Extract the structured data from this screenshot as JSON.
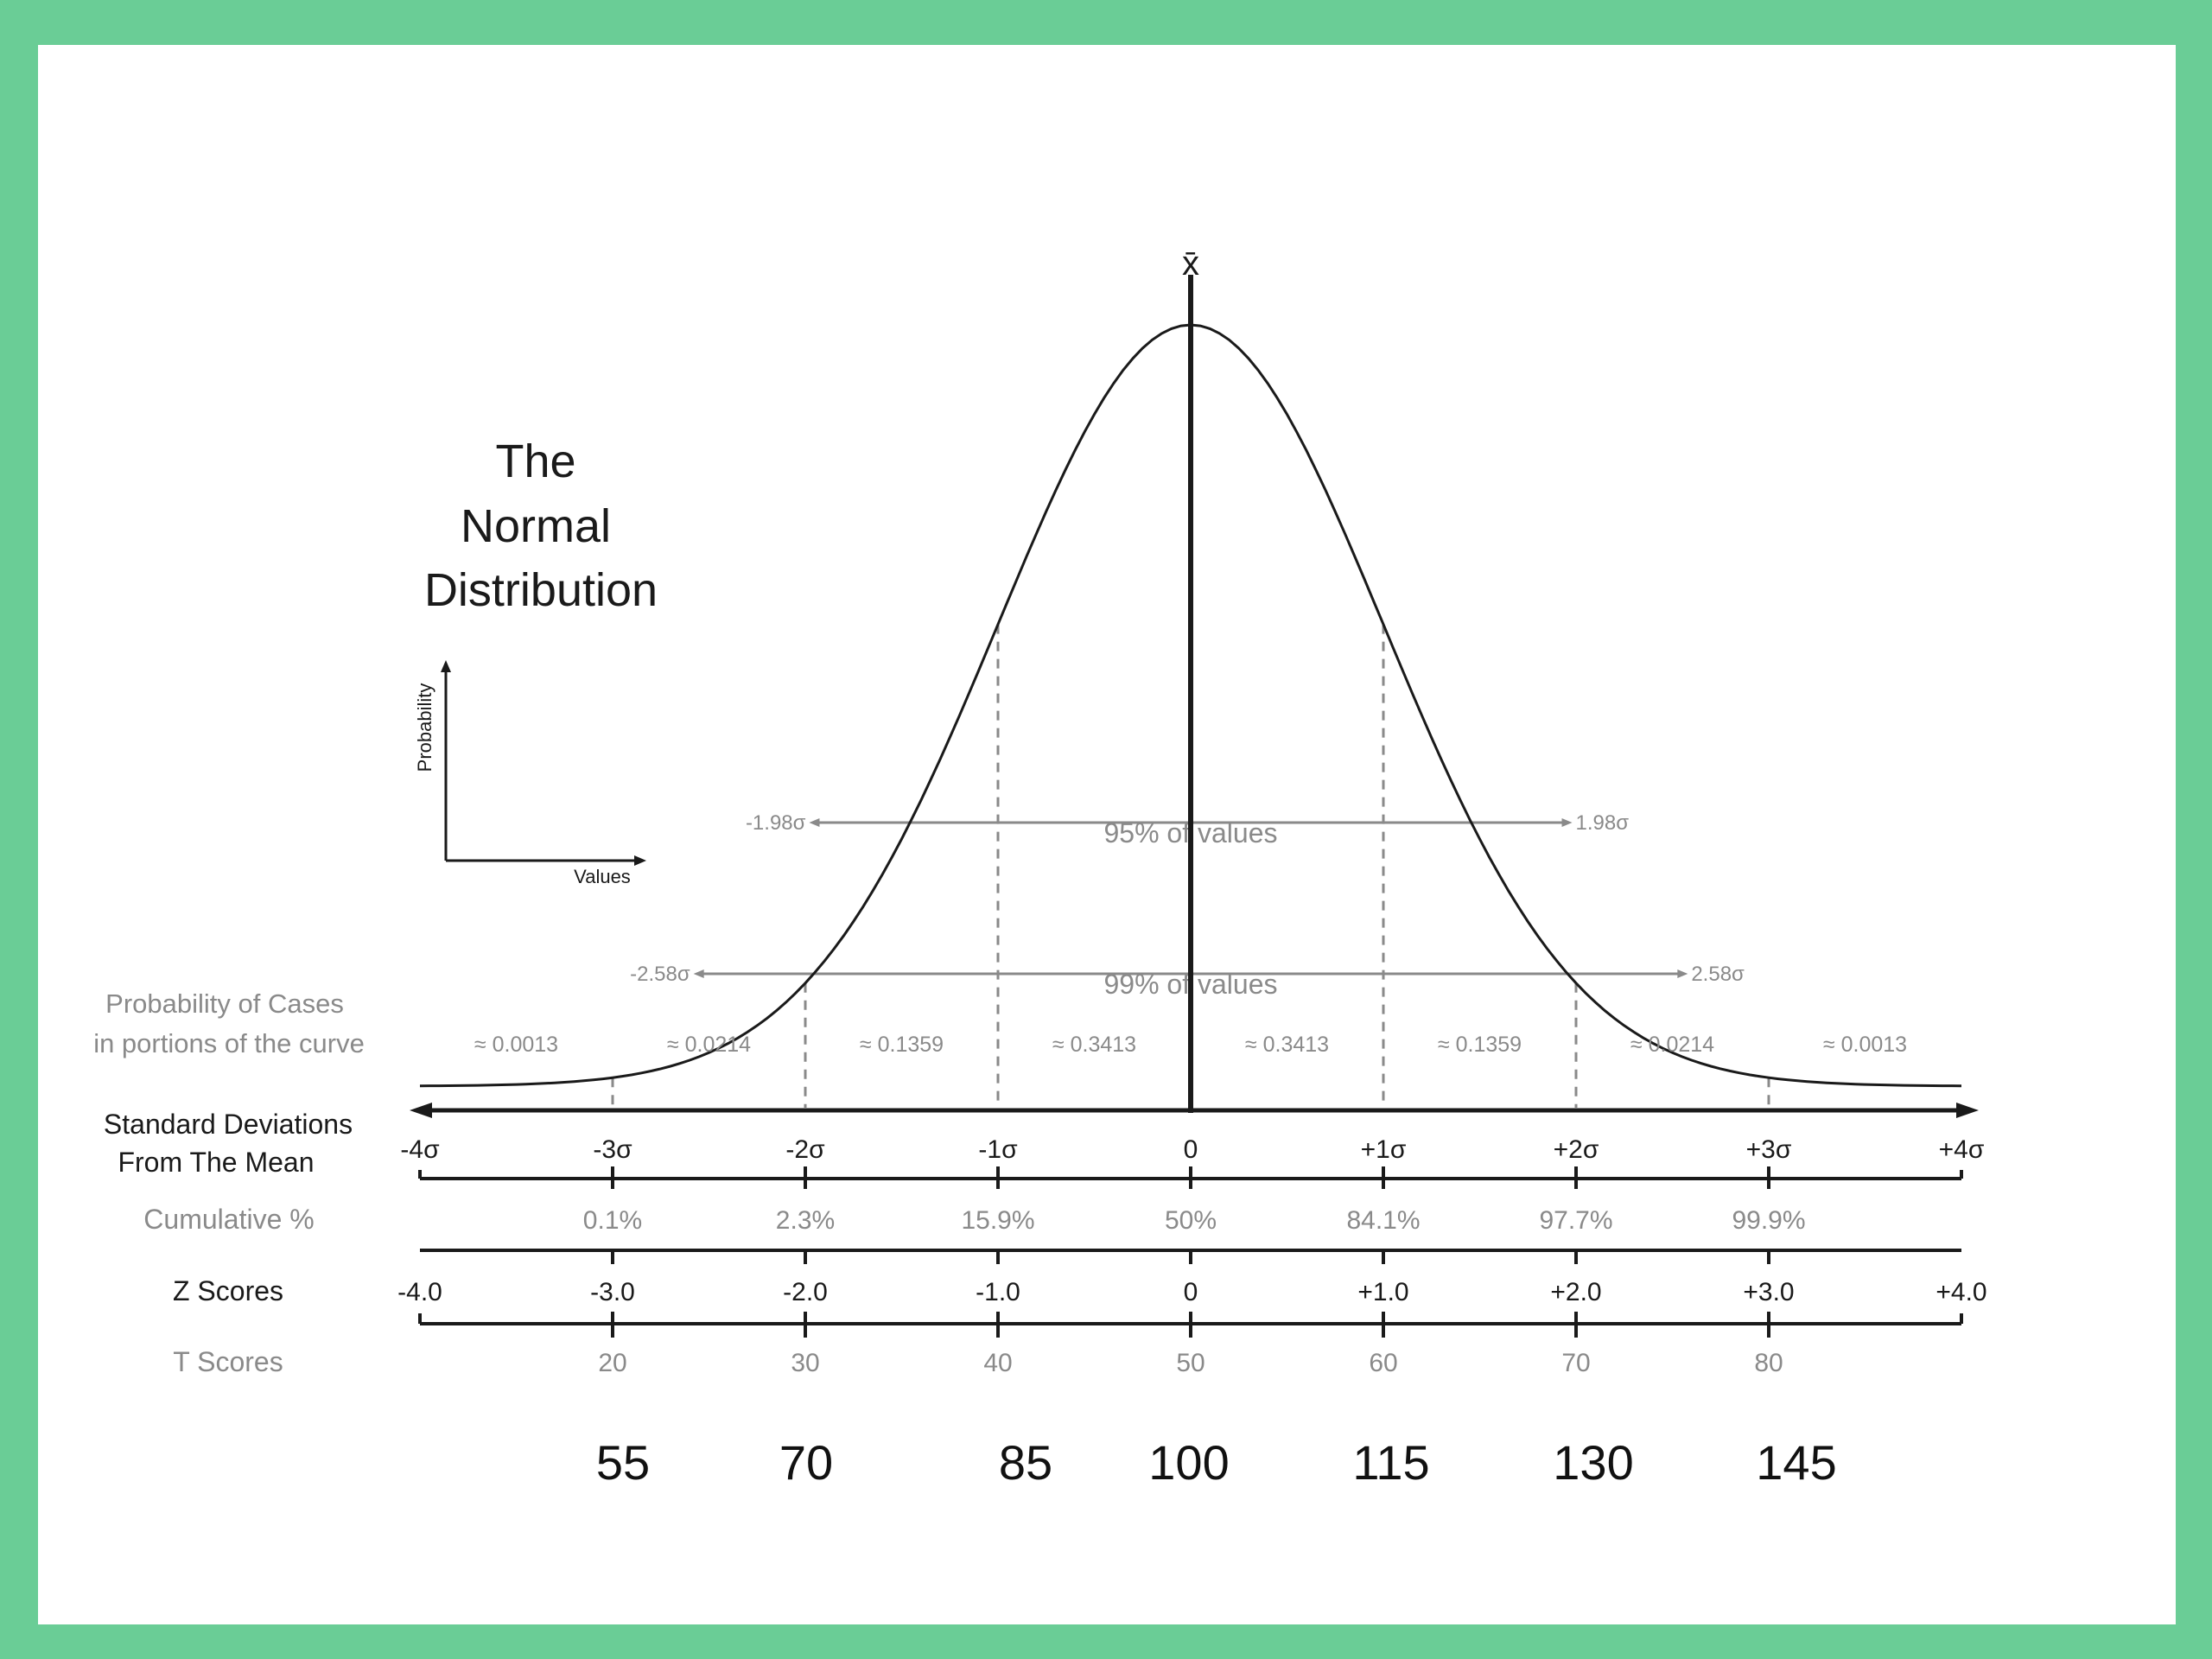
{
  "colors": {
    "border": "#6acd96",
    "background": "#ffffff",
    "ink": "#1a1a1a",
    "muted": "#8a8a8a"
  },
  "title": [
    "The",
    "Normal",
    "Distribution"
  ],
  "mean_symbol": "x̄",
  "mini_axes": {
    "ylabel": "Probability",
    "xlabel": "Values"
  },
  "intervals": {
    "i95": {
      "label": "95% of values",
      "left": "-1.98σ",
      "right": "1.98σ",
      "sigma": 1.98
    },
    "i99": {
      "label": "99% of values",
      "left": "-2.58σ",
      "right": "2.58σ",
      "sigma": 2.58
    }
  },
  "probability_label": [
    "Probability of Cases",
    "in portions of the curve"
  ],
  "probabilities": [
    "≈ 0.0013",
    "≈ 0.0214",
    "≈ 0.1359",
    "≈ 0.3413",
    "≈ 0.3413",
    "≈ 0.1359",
    "≈ 0.0214",
    "≈ 0.0013"
  ],
  "rows": {
    "sd": {
      "label": [
        "Standard Deviations",
        "From The Mean"
      ],
      "values": [
        "-4σ",
        "-3σ",
        "-2σ",
        "-1σ",
        "0",
        "+1σ",
        "+2σ",
        "+3σ",
        "+4σ"
      ]
    },
    "cumulative": {
      "label": "Cumulative %",
      "values": [
        "0.1%",
        "2.3%",
        "15.9%",
        "50%",
        "84.1%",
        "97.7%",
        "99.9%"
      ]
    },
    "z": {
      "label": "Z Scores",
      "values": [
        "-4.0",
        "-3.0",
        "-2.0",
        "-1.0",
        "0",
        "+1.0",
        "+2.0",
        "+3.0",
        "+4.0"
      ]
    },
    "t": {
      "label": "T Scores",
      "values": [
        "20",
        "30",
        "40",
        "50",
        "60",
        "70",
        "80"
      ]
    },
    "iq": {
      "values": [
        "55",
        "70",
        "85",
        "100",
        "115",
        "130",
        "145"
      ]
    }
  }
}
